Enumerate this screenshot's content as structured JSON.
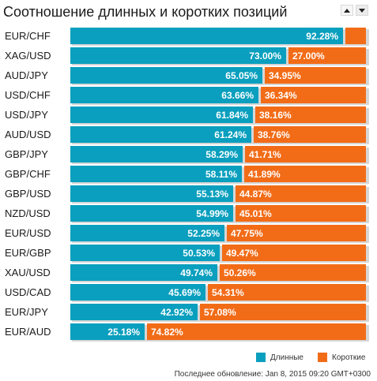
{
  "title": "Соотношение длинных и коротких позиций",
  "sort_icons": [
    "sort-up-icon",
    "sort-down-icon"
  ],
  "colors": {
    "long": "#0a9fbe",
    "short": "#f26c18"
  },
  "chart_data": {
    "type": "bar",
    "orientation": "horizontal",
    "stacked": true,
    "title": "Соотношение длинных и коротких позиций",
    "categories": [
      "EUR/CHF",
      "XAG/USD",
      "AUD/JPY",
      "USD/CHF",
      "USD/JPY",
      "AUD/USD",
      "GBP/JPY",
      "GBP/CHF",
      "GBP/USD",
      "NZD/USD",
      "EUR/USD",
      "EUR/GBP",
      "XAU/USD",
      "USD/CAD",
      "EUR/JPY",
      "EUR/AUD"
    ],
    "series": [
      {
        "name": "Длинные",
        "color": "#0a9fbe",
        "values": [
          92.28,
          73.0,
          65.05,
          63.66,
          61.84,
          61.24,
          58.29,
          58.11,
          55.13,
          54.99,
          52.25,
          50.53,
          49.74,
          45.69,
          42.92,
          25.18
        ],
        "labels": [
          "92.28%",
          "73.00%",
          "65.05%",
          "63.66%",
          "61.84%",
          "61.24%",
          "58.29%",
          "58.11%",
          "55.13%",
          "54.99%",
          "52.25%",
          "50.53%",
          "49.74%",
          "45.69%",
          "42.92%",
          "25.18%"
        ]
      },
      {
        "name": "Короткие",
        "color": "#f26c18",
        "values": [
          7.72,
          27.0,
          34.95,
          36.34,
          38.16,
          38.76,
          41.71,
          41.89,
          44.87,
          45.01,
          47.75,
          49.47,
          50.26,
          54.31,
          57.08,
          74.82
        ],
        "labels": [
          "",
          "27.00%",
          "34.95%",
          "36.34%",
          "38.16%",
          "38.76%",
          "41.71%",
          "41.89%",
          "44.87%",
          "45.01%",
          "47.75%",
          "49.47%",
          "50.26%",
          "54.31%",
          "57.08%",
          "74.82%"
        ]
      }
    ],
    "xlim": [
      0,
      100
    ],
    "legend": "bottom-right"
  },
  "legend": {
    "long": "Длинные",
    "short": "Короткие"
  },
  "footer": {
    "updated": "Последнее обновление: Jan 8, 2015 09:20 GMT+0300"
  }
}
